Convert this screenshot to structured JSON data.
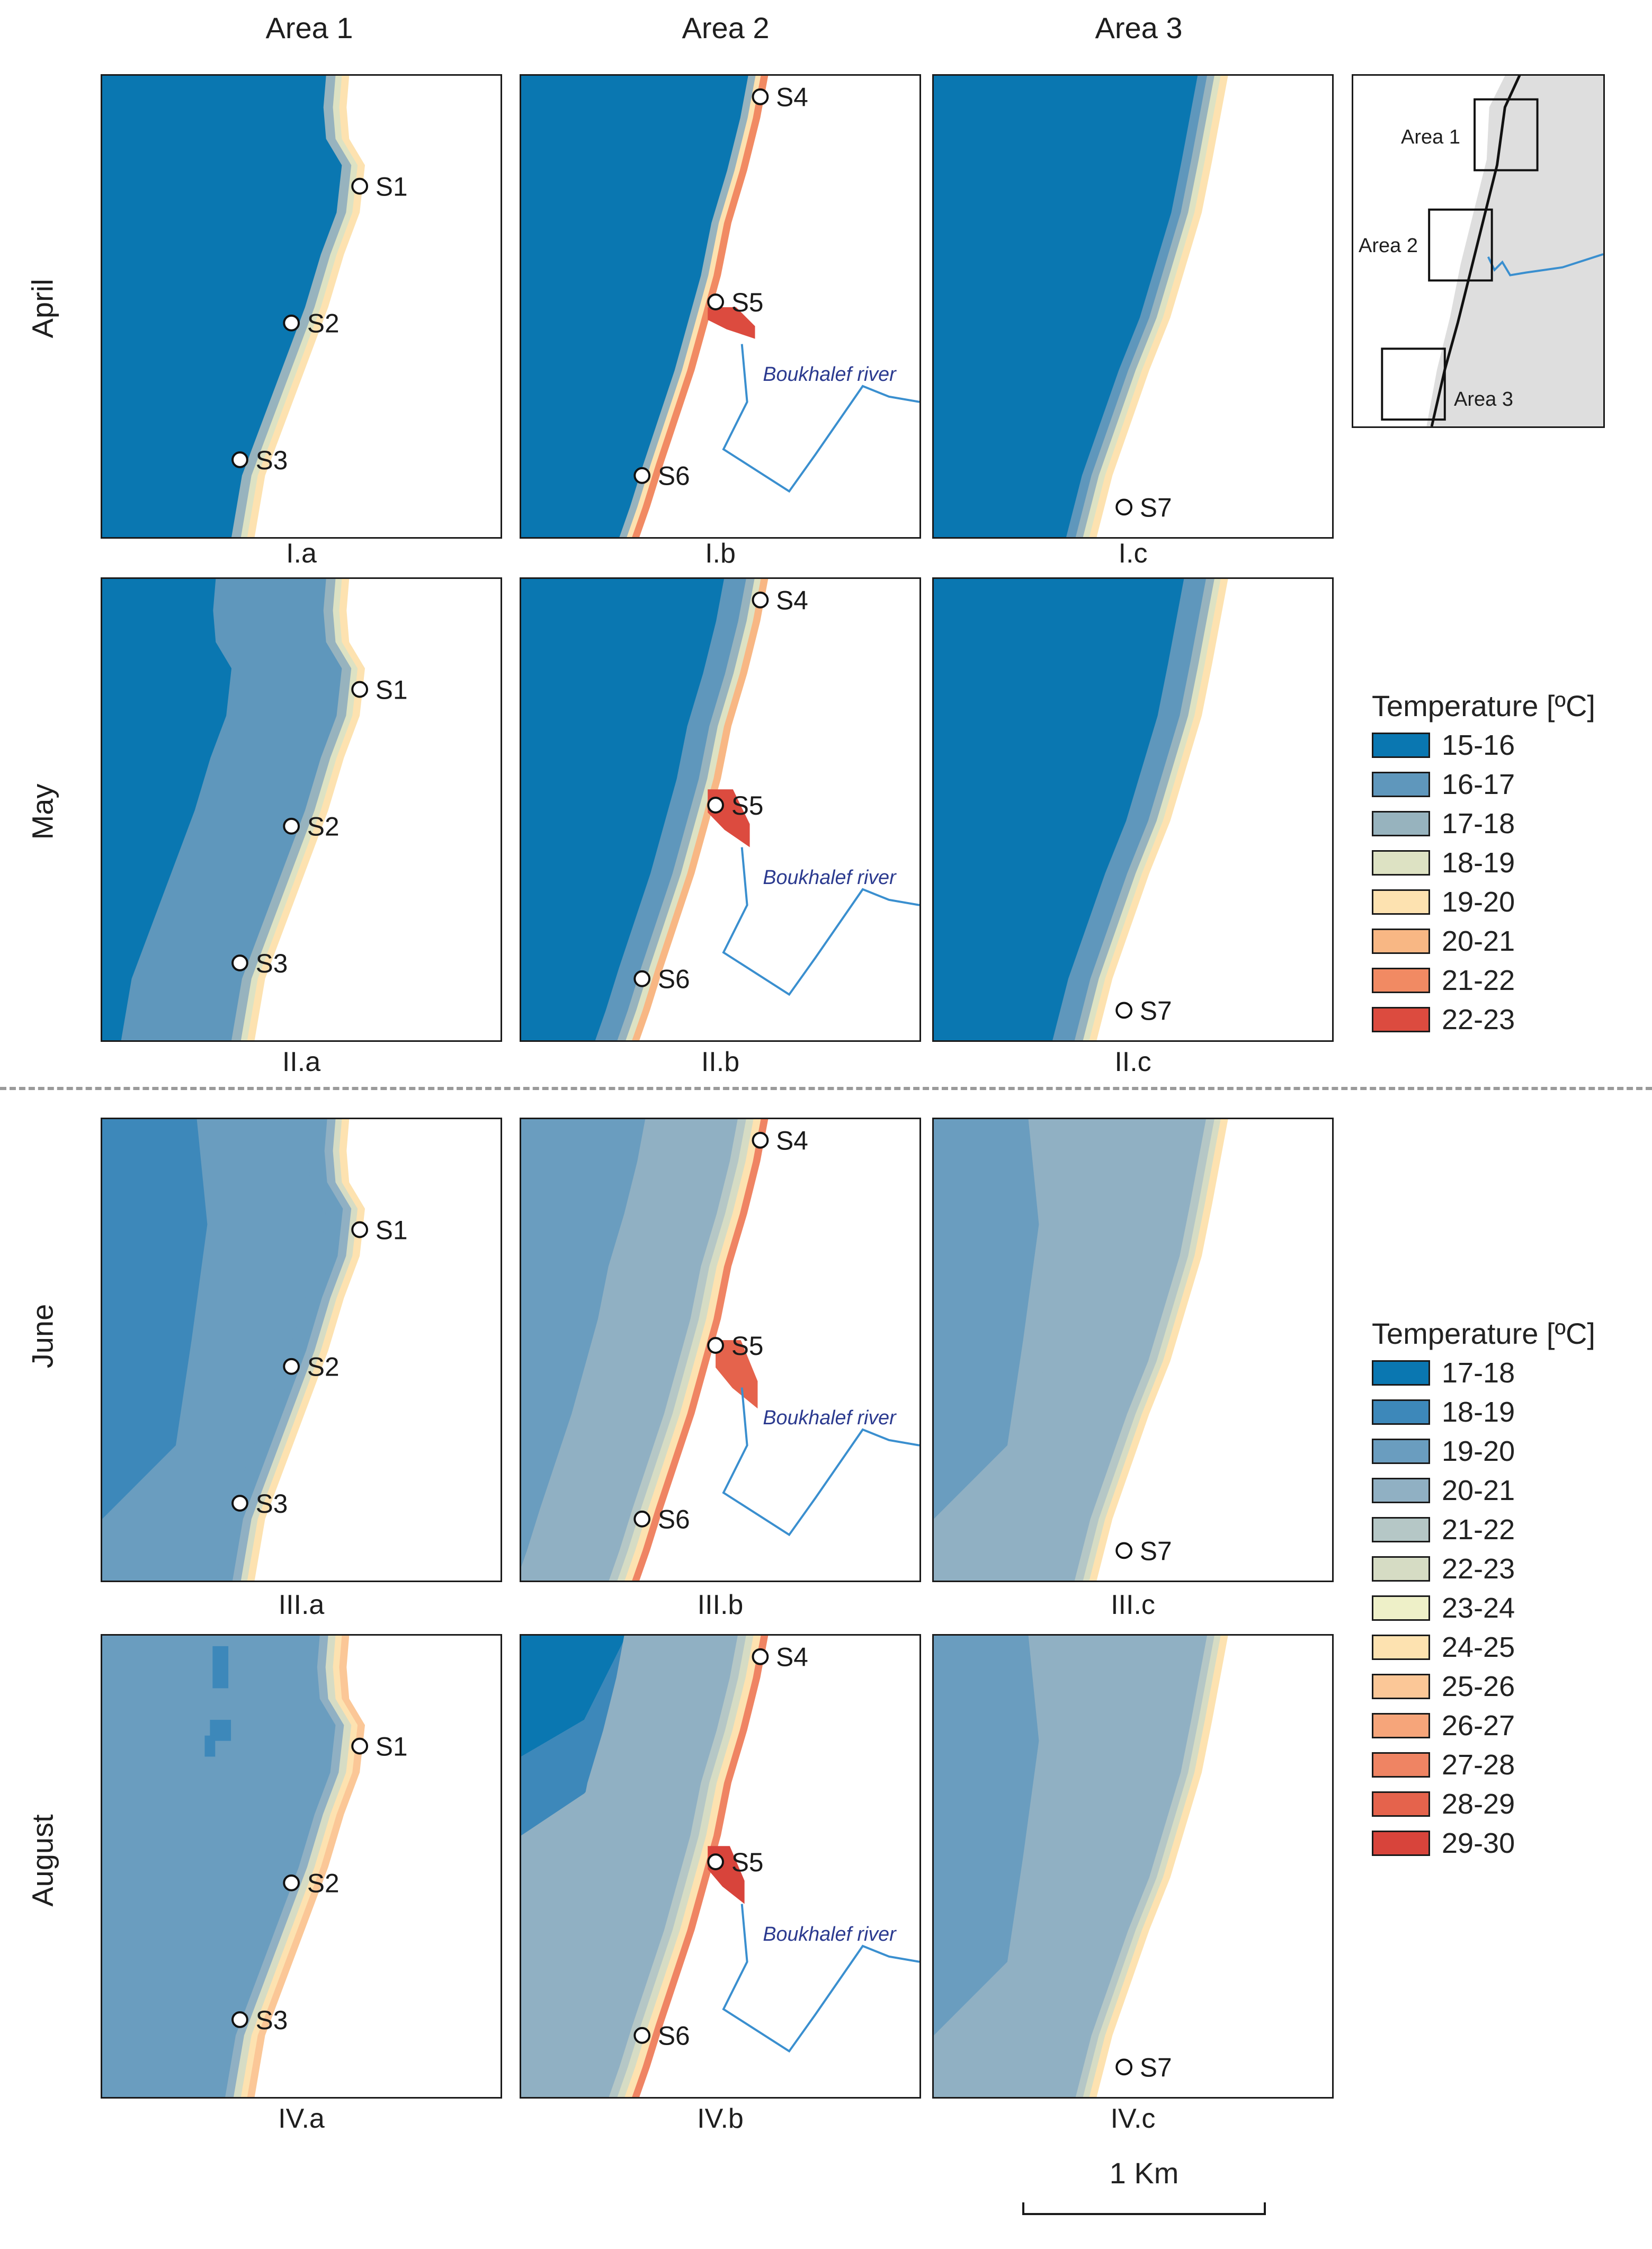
{
  "columns": [
    "Area 1",
    "Area 2",
    "Area 3"
  ],
  "rows": [
    "April",
    "May",
    "June",
    "August"
  ],
  "panel_labels": [
    [
      "I.a",
      "I.b",
      "I.c"
    ],
    [
      "II.a",
      "II.b",
      "II.c"
    ],
    [
      "III.a",
      "III.b",
      "III.c"
    ],
    [
      "IV.a",
      "IV.b",
      "IV.c"
    ]
  ],
  "stations": {
    "area1": [
      "S1",
      "S2",
      "S3"
    ],
    "area2": [
      "S4",
      "S5",
      "S6"
    ],
    "area3": [
      "S7"
    ]
  },
  "river_label": "Boukhalef river",
  "inset": {
    "area1_label": "Area 1",
    "area2_label": "Area 2",
    "area3_label": "Area 3"
  },
  "legend_top": {
    "title": "Temperature [ºC]",
    "items": [
      {
        "label": "15-16",
        "color": "#0a77b1"
      },
      {
        "label": "16-17",
        "color": "#5f97bc"
      },
      {
        "label": "17-18",
        "color": "#97b3be"
      },
      {
        "label": "18-19",
        "color": "#dde2c3"
      },
      {
        "label": "19-20",
        "color": "#fde2b0"
      },
      {
        "label": "20-21",
        "color": "#f8b784"
      },
      {
        "label": "21-22",
        "color": "#f18a63"
      },
      {
        "label": "22-23",
        "color": "#dc4b3f"
      }
    ]
  },
  "legend_bottom": {
    "title": "Temperature [ºC]",
    "items": [
      {
        "label": "17-18",
        "color": "#0a77b1"
      },
      {
        "label": "18-19",
        "color": "#3d88ba"
      },
      {
        "label": "19-20",
        "color": "#6a9dbf"
      },
      {
        "label": "20-21",
        "color": "#90b0c3"
      },
      {
        "label": "21-22",
        "color": "#b5c7c6"
      },
      {
        "label": "22-23",
        "color": "#d6dcc4"
      },
      {
        "label": "23-24",
        "color": "#eef0c8"
      },
      {
        "label": "24-25",
        "color": "#fde2b0"
      },
      {
        "label": "25-26",
        "color": "#fbc797"
      },
      {
        "label": "26-27",
        "color": "#f6a57a"
      },
      {
        "label": "27-28",
        "color": "#ef8463"
      },
      {
        "label": "28-29",
        "color": "#e5634c"
      },
      {
        "label": "29-30",
        "color": "#d8443b"
      }
    ]
  },
  "scale_label": "1 Km",
  "colors": {
    "river": "#3a8fcf",
    "coast": "#1a1a1a",
    "land": "#ffffff"
  }
}
